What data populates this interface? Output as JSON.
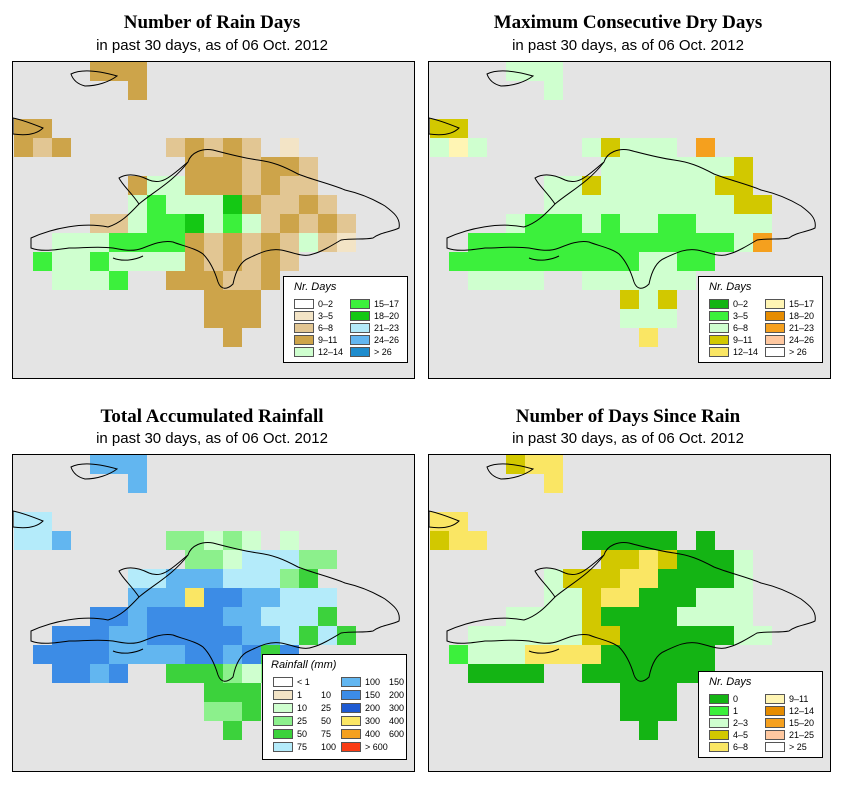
{
  "panels": [
    {
      "id": "rain_days",
      "title": "Number of Rain Days",
      "subtitle": "in past 30 days, as of  06 Oct. 2012",
      "legend": {
        "title": "Nr. Days",
        "items": [
          {
            "label": "0–2",
            "color": "#ffffff"
          },
          {
            "label": "3–5",
            "color": "#f3e4c6"
          },
          {
            "label": "6–8",
            "color": "#e2c693"
          },
          {
            "label": "9–11",
            "color": "#cda44a"
          },
          {
            "label": "12–14",
            "color": "#cfffcf"
          },
          {
            "label": "15–17",
            "color": "#3cf03c"
          },
          {
            "label": "18–20",
            "color": "#14c814"
          },
          {
            "label": "21–23",
            "color": "#b4ebfa"
          },
          {
            "label": "24–26",
            "color": "#62b6f0"
          },
          {
            "label": "> 26",
            "color": "#1e8ccd"
          }
        ]
      }
    },
    {
      "id": "dry_days",
      "title": "Maximum Consecutive Dry Days",
      "subtitle": "in past 30 days, as of  06 Oct. 2012",
      "legend": {
        "title": "Nr. Days",
        "items": [
          {
            "label": "0–2",
            "color": "#14b414"
          },
          {
            "label": "3–5",
            "color": "#3cf03c"
          },
          {
            "label": "6–8",
            "color": "#cfffcf"
          },
          {
            "label": "9–11",
            "color": "#d2c800"
          },
          {
            "label": "12–14",
            "color": "#fae664"
          },
          {
            "label": "15–17",
            "color": "#fff5b4"
          },
          {
            "label": "18–20",
            "color": "#e68c00"
          },
          {
            "label": "21–23",
            "color": "#f5a01e"
          },
          {
            "label": "24–26",
            "color": "#ffc8a0"
          },
          {
            "label": "> 26",
            "color": "#ffffff"
          }
        ]
      }
    },
    {
      "id": "rainfall",
      "title": "Total Accumulated Rainfall",
      "subtitle": "in past 30 days, as of  06 Oct. 2012",
      "legend": {
        "title": "Rainfall (mm)",
        "items": [
          {
            "lo": "< 1",
            "hi": "",
            "color": "#ffffff"
          },
          {
            "lo": "1",
            "hi": "10",
            "color": "#f3e4c6"
          },
          {
            "lo": "10",
            "hi": "25",
            "color": "#cfffcf"
          },
          {
            "lo": "25",
            "hi": "50",
            "color": "#8cf08c"
          },
          {
            "lo": "50",
            "hi": "75",
            "color": "#3cd23c"
          },
          {
            "lo": "75",
            "hi": "100",
            "color": "#b4ebfa"
          },
          {
            "lo": "100",
            "hi": "150",
            "color": "#62b6f0"
          },
          {
            "lo": "150",
            "hi": "200",
            "color": "#3c8ce6"
          },
          {
            "lo": "200",
            "hi": "300",
            "color": "#1e5ad2"
          },
          {
            "lo": "300",
            "hi": "400",
            "color": "#fae664"
          },
          {
            "lo": "400",
            "hi": "600",
            "color": "#f5a01e"
          },
          {
            "lo": "> 600",
            "hi": "",
            "color": "#fa3c14"
          }
        ]
      }
    },
    {
      "id": "since_rain",
      "title": "Number of Days Since Rain",
      "subtitle": "in past 30 days, as of  06 Oct. 2012",
      "legend": {
        "title": "Nr. Days",
        "items": [
          {
            "label": "0",
            "color": "#14b414"
          },
          {
            "label": "1",
            "color": "#3cf03c"
          },
          {
            "label": "2–3",
            "color": "#cfffcf"
          },
          {
            "label": "4–5",
            "color": "#d2c800"
          },
          {
            "label": "6–8",
            "color": "#fae664"
          },
          {
            "label": "9–11",
            "color": "#fff5b4"
          },
          {
            "label": "12–14",
            "color": "#e68c00"
          },
          {
            "label": "15–20",
            "color": "#f5a01e"
          },
          {
            "label": "21–25",
            "color": "#ffc8a0"
          },
          {
            "label": "> 25",
            "color": "#ffffff"
          }
        ]
      }
    }
  ],
  "grid": {
    "rows": [
      "....CCC.............",
      "......C.............",
      "....................",
      "CC..................",
      "CCC.....CCCCC.C.....",
      ".........CCCCCCCC...",
      "......CCCCCCCCCCCC..",
      "......CCCCCCCCCCCCC.",
      "....CCCCCCCCCCCCCCCC",
      ".CCCCCCCCCCCCCCCCCCC",
      ".CCCCCCCCCCCCCCCCC..",
      "..CCCC..CCCCCCC.....",
      "..........CCC.......",
      "..........CCC.......",
      "...........C........"
    ],
    "cells": {
      "rain_days": [
        "....DDD.............",
        "......D.............",
        "....................",
        "DD..................",
        "DCD.....CDCDC.B.....",
        ".........DDDCDDC...",
        "......DEEDDDCDCC..",
        "......EFEEEGDCCDC.",
        "....CCEFFGEFECDCDC",
        "..EEEFFFFDCDCDCECB",
        ".FEEFEEEEDCDCDC..",
        "..EEEF..DDDCCD.....",
        "..........DDD.......",
        "..........DDD.......",
        "...........D........"
      ],
      "dry_days": [
        "....CCC.............",
        "......C.............",
        "....................",
        "DD..................",
        "CFC.....CDCCC.H.....",
        ".........CCCCCCCD...",
        "......CCDCCCCCCDD..",
        "......CCCCCCCCCCDD.",
        "....CBBBCBCCBBCCCC",
        "..BBBBBBBBBBBBBBCH",
        ".BBBBBBBBBBCCBB..",
        "..CCCC..CCCCCC.....",
        "..........DCD.......",
        "..........CCC.......",
        "...........E........"
      ],
      "rainfall": [
        "....GGG.............",
        "......G.............",
        "....................",
        "FF..................",
        "FFG.....DDCDC.C.....",
        ".........DDCFFFDD...",
        "......FFGGGFFFDE..",
        "......GGGJHHGGFFF.",
        "....HHGHHHHGGFFFE",
        "..HHHGGHHHHHGGFEFE",
        ".HHHHGGGGHHGHEH..",
        "..HHGH..EEEDCD.....",
        "..........EEE.......",
        "..........DDE.......",
        "...........E........"
      ],
      "since_rain": [
        "....DEE.............",
        "......E.............",
        "....................",
        "EE..................",
        "DEE.....AAAAA.A.....",
        ".........DDEDAAAC...",
        "......CDDDEEAAAAC..",
        "......CCDEEAAACCC.",
        "....CCCCDAAAACCCC",
        "..CCCCCCDDAAAAAACC",
        ".BCCCEEEEAAAAAA..",
        "..AAAA..AAAAAAA.....",
        "..........AAA.......",
        "..........AAA.......",
        "...........A........"
      ]
    }
  },
  "colors": {
    "sea": "#e4e4e4",
    "coast": "#000000"
  }
}
